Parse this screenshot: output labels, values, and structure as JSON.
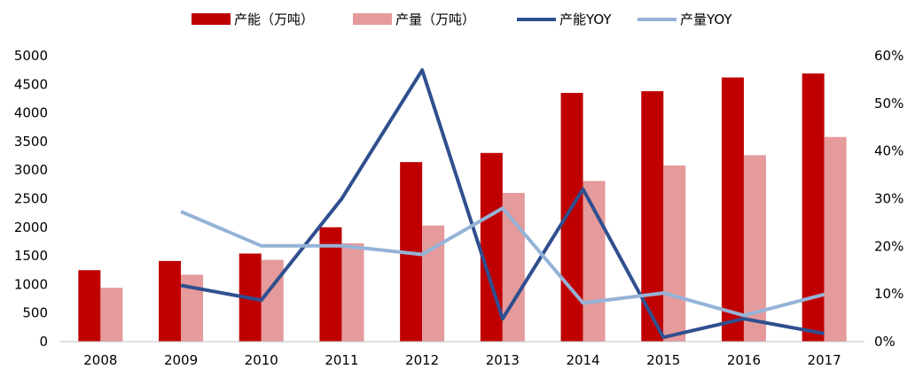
{
  "chart_data": {
    "type": "bar",
    "categories": [
      "2008",
      "2009",
      "2010",
      "2011",
      "2012",
      "2013",
      "2014",
      "2015",
      "2016",
      "2017"
    ],
    "series": [
      {
        "name": "产能（万吨）",
        "kind": "bar",
        "axis": "left",
        "color": "#C00000",
        "values": [
          1250,
          1410,
          1540,
          2000,
          3140,
          3300,
          4350,
          4380,
          4620,
          4690
        ]
      },
      {
        "name": "产量（万吨）",
        "kind": "bar",
        "axis": "left",
        "color": "#E59A9B",
        "values": [
          940,
          1170,
          1430,
          1720,
          2030,
          2600,
          2810,
          3080,
          3260,
          3580
        ]
      },
      {
        "name": "产能YOY",
        "kind": "line",
        "axis": "right",
        "color": "#2F4F8F",
        "values": [
          null,
          0.118,
          0.087,
          0.3,
          0.57,
          0.048,
          0.32,
          0.009,
          0.048,
          0.017
        ]
      },
      {
        "name": "产量YOY",
        "kind": "line",
        "axis": "right",
        "color": "#95B3D7",
        "values": [
          null,
          0.273,
          0.201,
          0.201,
          0.183,
          0.28,
          0.081,
          0.102,
          0.055,
          0.099
        ]
      }
    ],
    "y_left": {
      "min": 0,
      "max": 5000,
      "step": 500,
      "ticks": [
        "0",
        "500",
        "1000",
        "1500",
        "2000",
        "2500",
        "3000",
        "3500",
        "4000",
        "4500",
        "5000"
      ]
    },
    "y_right": {
      "min": 0,
      "max": 0.6,
      "step": 0.1,
      "ticks": [
        "0%",
        "10%",
        "20%",
        "30%",
        "40%",
        "50%",
        "60%"
      ]
    },
    "grid": false,
    "legend_position": "top"
  }
}
